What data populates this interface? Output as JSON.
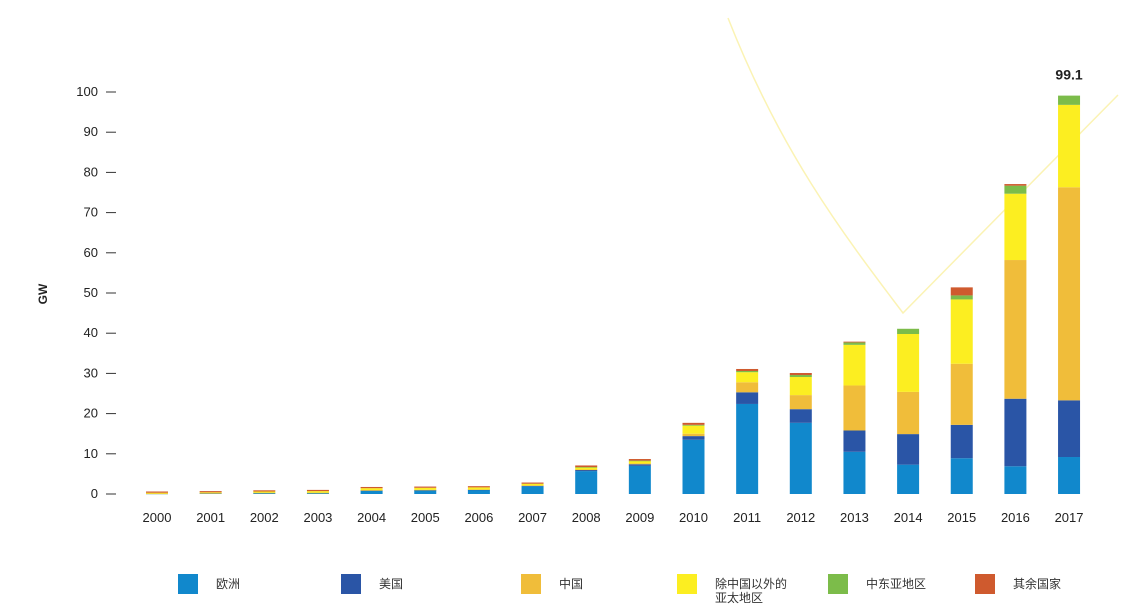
{
  "chart_data": {
    "type": "bar",
    "stacked": true,
    "ylabel": "GW",
    "ylim": [
      0,
      100
    ],
    "yticks": [
      0,
      10,
      20,
      30,
      40,
      50,
      60,
      70,
      80,
      90,
      100
    ],
    "categories": [
      "2000",
      "2001",
      "2002",
      "2003",
      "2004",
      "2005",
      "2006",
      "2007",
      "2008",
      "2009",
      "2010",
      "2011",
      "2012",
      "2013",
      "2014",
      "2015",
      "2016",
      "2017"
    ],
    "series": [
      {
        "name": "欧洲",
        "color": "#1188cc",
        "values": [
          0.1,
          0.2,
          0.3,
          0.3,
          0.8,
          0.9,
          1.0,
          1.9,
          5.7,
          7.0,
          13.5,
          22.4,
          17.7,
          10.5,
          7.3,
          8.9,
          6.9,
          9.2
        ]
      },
      {
        "name": "美国",
        "color": "#2a55a6",
        "values": [
          0.0,
          0.0,
          0.0,
          0.0,
          0.1,
          0.1,
          0.1,
          0.2,
          0.3,
          0.4,
          0.9,
          2.9,
          3.4,
          5.3,
          7.6,
          8.3,
          16.8,
          14.1
        ]
      },
      {
        "name": "中国",
        "color": "#f0bd3a",
        "values": [
          0.02,
          0.02,
          0.02,
          0.02,
          0.05,
          0.05,
          0.05,
          0.05,
          0.1,
          0.2,
          0.6,
          2.5,
          3.5,
          11.2,
          10.5,
          15.2,
          34.5,
          53.0
        ]
      },
      {
        "name": "除中国以外的亚太地区",
        "color": "#fcee21",
        "values": [
          0.2,
          0.2,
          0.3,
          0.4,
          0.5,
          0.5,
          0.5,
          0.4,
          0.5,
          0.6,
          2.0,
          2.5,
          4.5,
          10.1,
          14.4,
          16.0,
          16.5,
          20.5
        ]
      },
      {
        "name": "中东亚地区",
        "color": "#7cbc4a",
        "values": [
          0.0,
          0.0,
          0.0,
          0.0,
          0.0,
          0.0,
          0.0,
          0.0,
          0.1,
          0.1,
          0.2,
          0.3,
          0.5,
          0.6,
          1.3,
          1.0,
          2.0,
          2.3
        ]
      },
      {
        "name": "其余国家",
        "color": "#cf5a2e",
        "values": [
          0.3,
          0.3,
          0.3,
          0.3,
          0.3,
          0.3,
          0.3,
          0.3,
          0.4,
          0.4,
          0.5,
          0.5,
          0.5,
          0.2,
          0.0,
          2.0,
          0.4,
          0.0
        ]
      }
    ],
    "annotations": [
      {
        "category": "2017",
        "text": "99.1"
      }
    ]
  }
}
